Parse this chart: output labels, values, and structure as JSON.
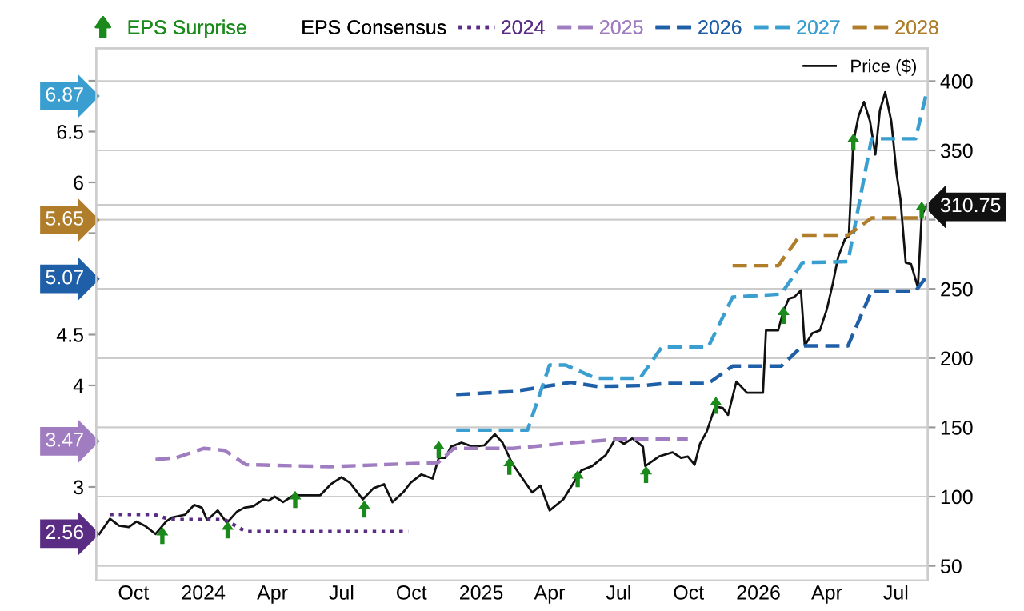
{
  "chart_data": {
    "type": "line",
    "legend_title": "EPS Consensus",
    "xlim": [
      "2023-08-13",
      "2026-08-12"
    ],
    "xticks": [
      {
        "value": "2023-10-01",
        "label": "Oct"
      },
      {
        "value": "2024-01-01",
        "label": "2024"
      },
      {
        "value": "2024-04-01",
        "label": "Apr"
      },
      {
        "value": "2024-07-01",
        "label": "Jul"
      },
      {
        "value": "2024-10-01",
        "label": "Oct"
      },
      {
        "value": "2025-01-01",
        "label": "2025"
      },
      {
        "value": "2025-04-01",
        "label": "Apr"
      },
      {
        "value": "2025-07-01",
        "label": "Jul"
      },
      {
        "value": "2025-10-01",
        "label": "Oct"
      },
      {
        "value": "2026-01-01",
        "label": "2026"
      },
      {
        "value": "2026-04-01",
        "label": "Apr"
      },
      {
        "value": "2026-07-01",
        "label": "Jul"
      }
    ],
    "ylim": [
      2.08,
      7.32
    ],
    "yticks": [
      2.56,
      3,
      3.47,
      4,
      4.5,
      5.07,
      {
        "value": 5.5,
        "label": null
      },
      5.65,
      6,
      6.5,
      6.87,
      {
        "value": 7,
        "label": null
      }
    ],
    "y2lim": [
      39.5,
      423.7
    ],
    "y2ticks": [
      50,
      100,
      150,
      200,
      250,
      {
        "value": 300,
        "label": null
      },
      310.75,
      350,
      400
    ],
    "grid": true,
    "legend": "top",
    "series": [
      {
        "name": "EPS Surprise",
        "type": "scatter",
        "axis": "y2",
        "color": "#1a8a1a",
        "marker": "triangle",
        "x": [
          "2023-11-08",
          "2024-02-02",
          "2024-05-01",
          "2024-07-31",
          "2024-11-06",
          "2025-02-07",
          "2025-05-08",
          "2025-08-06",
          "2025-11-06",
          "2026-02-03",
          "2026-05-06",
          "2026-08-04"
        ],
        "values": [
          72,
          76,
          98,
          91,
          134,
          122,
          113,
          116,
          166,
          231,
          356,
          307
        ]
      },
      {
        "name": "2024",
        "color": "#5b2c83",
        "line_style": "dotted",
        "x": [
          "2023-08-31",
          "2023-10-27",
          "2023-11-19",
          "2024-01-29",
          "2024-02-26",
          "2024-09-27"
        ],
        "values": [
          2.73,
          2.73,
          2.68,
          2.68,
          2.56,
          2.56
        ]
      },
      {
        "name": "2025",
        "color": "#a07cc0",
        "line_style": "dashed",
        "x": [
          "2023-10-30",
          "2023-11-27",
          "2024-01-02",
          "2024-01-29",
          "2024-02-26",
          "2024-06-17",
          "2024-11-05",
          "2024-11-26",
          "2025-02-12",
          "2025-04-22",
          "2025-07-01",
          "2025-09-30"
        ],
        "values": [
          3.27,
          3.29,
          3.38,
          3.36,
          3.22,
          3.2,
          3.24,
          3.38,
          3.38,
          3.43,
          3.47,
          3.47
        ]
      },
      {
        "name": "2026",
        "color": "#1f5fa8",
        "line_style": "dashed",
        "x": [
          "2024-11-29",
          "2025-02-12",
          "2025-04-29",
          "2025-06-03",
          "2025-08-05",
          "2025-08-31",
          "2025-10-27",
          "2025-11-28",
          "2026-01-31",
          "2026-02-28",
          "2026-04-29",
          "2026-05-30",
          "2026-07-27",
          "2026-08-10"
        ],
        "values": [
          3.91,
          3.94,
          4.03,
          3.99,
          4.0,
          4.02,
          4.02,
          4.19,
          4.19,
          4.39,
          4.39,
          4.93,
          4.93,
          5.07
        ]
      },
      {
        "name": "2027",
        "color": "#3a9fd0",
        "line_style": "dashed",
        "x": [
          "2024-11-29",
          "2025-03-03",
          "2025-04-01",
          "2025-04-22",
          "2025-06-01",
          "2025-07-29",
          "2025-08-27",
          "2025-10-27",
          "2025-11-28",
          "2026-01-31",
          "2026-02-28",
          "2026-04-29",
          "2026-05-30",
          "2026-07-27",
          "2026-08-10"
        ],
        "values": [
          3.56,
          3.56,
          4.2,
          4.2,
          4.07,
          4.07,
          4.38,
          4.38,
          4.87,
          4.9,
          5.21,
          5.22,
          6.43,
          6.43,
          6.87
        ]
      },
      {
        "name": "2028",
        "color": "#b07d2b",
        "line_style": "dashed",
        "x": [
          "2025-11-28",
          "2026-01-27",
          "2026-02-25",
          "2026-04-29",
          "2026-05-30",
          "2026-08-10"
        ],
        "values": [
          5.18,
          5.18,
          5.48,
          5.48,
          5.65,
          5.65
        ]
      },
      {
        "name": "Price ($)",
        "color": "#111111",
        "axis": "y2",
        "line_style": "solid",
        "x": [
          "2023-08-17",
          "2023-08-31",
          "2023-09-12",
          "2023-09-25",
          "2023-10-05",
          "2023-10-16",
          "2023-10-30",
          "2023-11-13",
          "2023-11-21",
          "2023-12-08",
          "2023-12-20",
          "2023-12-30",
          "2024-01-06",
          "2024-01-20",
          "2024-02-01",
          "2024-02-14",
          "2024-02-24",
          "2024-03-07",
          "2024-03-20",
          "2024-03-27",
          "2024-04-04",
          "2024-04-15",
          "2024-04-29",
          "2024-05-16",
          "2024-06-03",
          "2024-06-17",
          "2024-07-01",
          "2024-07-12",
          "2024-07-29",
          "2024-08-12",
          "2024-08-26",
          "2024-09-06",
          "2024-09-20",
          "2024-09-30",
          "2024-10-14",
          "2024-10-29",
          "2024-11-06",
          "2024-11-15",
          "2024-11-22",
          "2024-12-06",
          "2024-12-21",
          "2025-01-05",
          "2025-01-19",
          "2025-01-29",
          "2025-02-09",
          "2025-02-12",
          "2025-03-09",
          "2025-03-20",
          "2025-04-01",
          "2025-04-19",
          "2025-05-13",
          "2025-05-27",
          "2025-06-14",
          "2025-06-27",
          "2025-07-08",
          "2025-07-19",
          "2025-08-02",
          "2025-08-05",
          "2025-08-23",
          "2025-09-10",
          "2025-09-21",
          "2025-09-30",
          "2025-10-09",
          "2025-10-16",
          "2025-10-25",
          "2025-11-05",
          "2025-11-15",
          "2025-11-22",
          "2025-12-03",
          "2025-12-17",
          "2026-01-07",
          "2026-01-11",
          "2026-01-27",
          "2026-02-03",
          "2026-02-10",
          "2026-02-17",
          "2026-02-26",
          "2026-03-03",
          "2026-03-13",
          "2026-03-23",
          "2026-04-01",
          "2026-04-09",
          "2026-04-16",
          "2026-04-25",
          "2026-04-30",
          "2026-05-06",
          "2026-05-13",
          "2026-05-20",
          "2026-05-28",
          "2026-06-04",
          "2026-06-10",
          "2026-06-17",
          "2026-06-25",
          "2026-07-02",
          "2026-07-07",
          "2026-07-14",
          "2026-07-21",
          "2026-07-30",
          "2026-08-04",
          "2026-08-11"
        ],
        "values": [
          73,
          84,
          79,
          78,
          82,
          79,
          73,
          82,
          85,
          87,
          94,
          92,
          83,
          90,
          81,
          89,
          92,
          93,
          98,
          97,
          100,
          96,
          101,
          101,
          101,
          109,
          114,
          110,
          98,
          106,
          109,
          96,
          103,
          110,
          116,
          113,
          128,
          128,
          136,
          139,
          136,
          137,
          145,
          139,
          126,
          123,
          103,
          108,
          90,
          98,
          119,
          122,
          130,
          142,
          138,
          142,
          136,
          122,
          129,
          132,
          128,
          129,
          123,
          138,
          147,
          165,
          164,
          159,
          183,
          175,
          175,
          220,
          220,
          234,
          243,
          244,
          249,
          209,
          218,
          220,
          235,
          254,
          273,
          286,
          288,
          356,
          375,
          385,
          371,
          347,
          379,
          392,
          371,
          333,
          315,
          269,
          268,
          251,
          303,
          310.75
        ]
      }
    ]
  }
}
